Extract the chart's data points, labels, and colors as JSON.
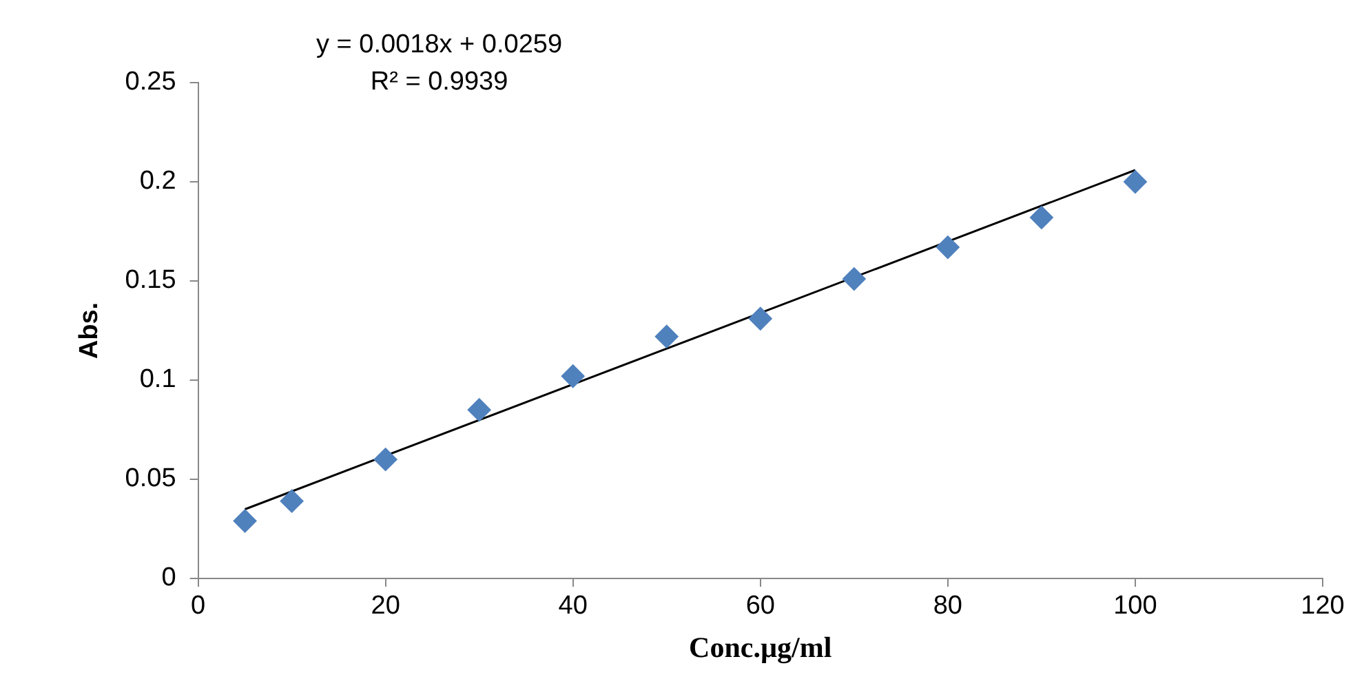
{
  "chart_data": {
    "type": "scatter",
    "xlabel": "Conc.µg/ml",
    "ylabel": "Abs.",
    "x": [
      5,
      10,
      20,
      30,
      40,
      50,
      60,
      70,
      80,
      90,
      100
    ],
    "series": [
      {
        "color": "#4f81bd",
        "marker": "diamond",
        "values": [
          0.029,
          0.039,
          0.06,
          0.085,
          0.102,
          0.122,
          0.131,
          0.151,
          0.167,
          0.182,
          0.2
        ]
      },
      {
        "type": "line",
        "color": "#000000",
        "marker": "none",
        "x": [
          5,
          100
        ],
        "values": [
          0.0349,
          0.2059
        ]
      }
    ],
    "xlim": [
      0,
      120
    ],
    "xticks": [
      0,
      20,
      40,
      60,
      80,
      100,
      120
    ],
    "ylim": [
      0,
      0.25
    ],
    "yticks": [
      0,
      0.05,
      0.1,
      0.15,
      0.2,
      0.25
    ],
    "grid": false,
    "legend": false,
    "annotations": [
      "y = 0.0018x + 0.0259",
      "R² = 0.9939"
    ]
  }
}
